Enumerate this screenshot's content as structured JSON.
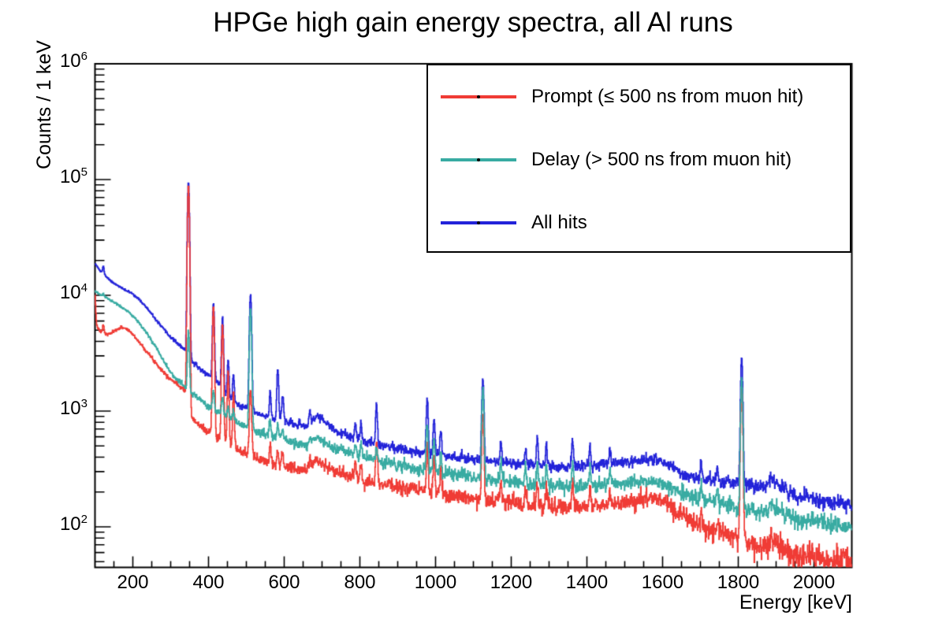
{
  "title": "HPGe high gain energy spectra, all Al runs",
  "axes": {
    "x": {
      "label": "Energy [keV]",
      "min": 100,
      "max": 2100,
      "major_ticks": [
        200,
        400,
        600,
        800,
        1000,
        1200,
        1400,
        1600,
        1800,
        2000
      ],
      "minor_tick_step": 50
    },
    "y": {
      "label": "Counts / 1 keV",
      "scale": "log",
      "min": 44,
      "max": 1000000,
      "decade_exponents": [
        2,
        3,
        4,
        5,
        6
      ]
    }
  },
  "legend": {
    "position": "top-right",
    "entries": [
      {
        "series": "prompt",
        "label": "Prompt (≤ 500 ns from muon hit)",
        "color": "#f03b35"
      },
      {
        "series": "delay",
        "label": "Delay (> 500 ns from muon hit)",
        "color": "#38aba2"
      },
      {
        "series": "all",
        "label": "All hits",
        "color": "#2323d9"
      }
    ]
  },
  "chart_data": {
    "type": "line",
    "title": "HPGe high gain energy spectra, all Al runs",
    "xlabel": "Energy [keV]",
    "ylabel": "Counts / 1 keV",
    "xlim": [
      100,
      2100
    ],
    "ylim": [
      44,
      1000000
    ],
    "yscale": "log",
    "grid": false,
    "bin_width_kev": 1,
    "legend_position": "top-right",
    "draw_order": [
      "all",
      "prompt",
      "delay"
    ],
    "series": [
      {
        "role": "all",
        "name": "All hits",
        "color": "#2323d9",
        "baseline_anchors": [
          [
            100,
            19000
          ],
          [
            115,
            16000
          ],
          [
            130,
            14500
          ],
          [
            145,
            13000
          ],
          [
            160,
            12200
          ],
          [
            175,
            11300
          ],
          [
            200,
            10300
          ],
          [
            215,
            9300
          ],
          [
            230,
            8300
          ],
          [
            245,
            7200
          ],
          [
            260,
            6200
          ],
          [
            275,
            5400
          ],
          [
            290,
            4700
          ],
          [
            305,
            4200
          ],
          [
            320,
            3800
          ],
          [
            335,
            3400
          ],
          [
            350,
            3000
          ],
          [
            360,
            2600
          ],
          [
            375,
            2350
          ],
          [
            390,
            2150
          ],
          [
            405,
            2000
          ],
          [
            420,
            1850
          ],
          [
            435,
            1600
          ],
          [
            450,
            1350
          ],
          [
            465,
            1200
          ],
          [
            480,
            1120
          ],
          [
            495,
            1060
          ],
          [
            515,
            1000
          ],
          [
            535,
            930
          ],
          [
            555,
            880
          ],
          [
            575,
            840
          ],
          [
            600,
            810
          ],
          [
            625,
            770
          ],
          [
            650,
            740
          ],
          [
            668,
            760
          ],
          [
            686,
            910
          ],
          [
            698,
            880
          ],
          [
            712,
            780
          ],
          [
            730,
            690
          ],
          [
            755,
            630
          ],
          [
            780,
            590
          ],
          [
            810,
            550
          ],
          [
            840,
            525
          ],
          [
            870,
            500
          ],
          [
            900,
            475
          ],
          [
            940,
            450
          ],
          [
            980,
            435
          ],
          [
            1020,
            415
          ],
          [
            1060,
            400
          ],
          [
            1100,
            385
          ],
          [
            1150,
            370
          ],
          [
            1200,
            355
          ],
          [
            1250,
            345
          ],
          [
            1300,
            335
          ],
          [
            1350,
            328
          ],
          [
            1400,
            332
          ],
          [
            1450,
            348
          ],
          [
            1500,
            365
          ],
          [
            1540,
            378
          ],
          [
            1572,
            388
          ],
          [
            1600,
            372
          ],
          [
            1622,
            335
          ],
          [
            1648,
            295
          ],
          [
            1675,
            268
          ],
          [
            1705,
            255
          ],
          [
            1745,
            248
          ],
          [
            1785,
            244
          ],
          [
            1815,
            237
          ],
          [
            1845,
            222
          ],
          [
            1872,
            218
          ],
          [
            1888,
            268
          ],
          [
            1902,
            235
          ],
          [
            1925,
            205
          ],
          [
            1955,
            185
          ],
          [
            2000,
            175
          ],
          [
            2050,
            163
          ],
          [
            2100,
            152
          ]
        ]
      },
      {
        "role": "prompt",
        "name": "Prompt (≤ 500 ns from muon hit)",
        "color": "#f03b35",
        "baseline_anchors": [
          [
            100,
            10500
          ],
          [
            104,
            5600
          ],
          [
            112,
            4900
          ],
          [
            122,
            4650
          ],
          [
            132,
            4600
          ],
          [
            142,
            4700
          ],
          [
            155,
            4950
          ],
          [
            168,
            5300
          ],
          [
            180,
            5200
          ],
          [
            192,
            4900
          ],
          [
            205,
            4400
          ],
          [
            218,
            3900
          ],
          [
            231,
            3450
          ],
          [
            244,
            3050
          ],
          [
            257,
            2700
          ],
          [
            270,
            2400
          ],
          [
            283,
            2150
          ],
          [
            296,
            1950
          ],
          [
            310,
            1780
          ],
          [
            324,
            1640
          ],
          [
            338,
            1530
          ],
          [
            348,
            1450
          ],
          [
            354,
            880
          ],
          [
            368,
            790
          ],
          [
            382,
            730
          ],
          [
            398,
            670
          ],
          [
            414,
            620
          ],
          [
            430,
            570
          ],
          [
            446,
            530
          ],
          [
            462,
            495
          ],
          [
            482,
            455
          ],
          [
            502,
            425
          ],
          [
            522,
            400
          ],
          [
            545,
            375
          ],
          [
            568,
            352
          ],
          [
            592,
            335
          ],
          [
            616,
            320
          ],
          [
            640,
            308
          ],
          [
            662,
            315
          ],
          [
            684,
            375
          ],
          [
            697,
            362
          ],
          [
            711,
            330
          ],
          [
            730,
            305
          ],
          [
            755,
            285
          ],
          [
            780,
            270
          ],
          [
            810,
            255
          ],
          [
            840,
            243
          ],
          [
            870,
            232
          ],
          [
            900,
            222
          ],
          [
            935,
            211
          ],
          [
            970,
            202
          ],
          [
            1000,
            195
          ],
          [
            1040,
            187
          ],
          [
            1080,
            180
          ],
          [
            1120,
            173
          ],
          [
            1160,
            167
          ],
          [
            1200,
            161
          ],
          [
            1250,
            155
          ],
          [
            1300,
            151
          ],
          [
            1350,
            148
          ],
          [
            1400,
            150
          ],
          [
            1450,
            156
          ],
          [
            1500,
            164
          ],
          [
            1540,
            171
          ],
          [
            1572,
            176
          ],
          [
            1600,
            167
          ],
          [
            1622,
            148
          ],
          [
            1648,
            128
          ],
          [
            1675,
            113
          ],
          [
            1705,
            101
          ],
          [
            1740,
            92
          ],
          [
            1775,
            85
          ],
          [
            1810,
            79
          ],
          [
            1845,
            70
          ],
          [
            1872,
            68
          ],
          [
            1888,
            82
          ],
          [
            1902,
            71
          ],
          [
            1925,
            63
          ],
          [
            1955,
            58
          ],
          [
            2000,
            55
          ],
          [
            2050,
            52
          ],
          [
            2100,
            49
          ]
        ]
      },
      {
        "role": "delay",
        "name": "Delay (> 500 ns from muon hit)",
        "color": "#38aba2",
        "baseline_anchors": [
          [
            100,
            10800
          ],
          [
            115,
            10100
          ],
          [
            130,
            9500
          ],
          [
            145,
            8900
          ],
          [
            160,
            8300
          ],
          [
            175,
            7700
          ],
          [
            190,
            7100
          ],
          [
            205,
            6400
          ],
          [
            220,
            5600
          ],
          [
            235,
            4800
          ],
          [
            250,
            4050
          ],
          [
            265,
            3400
          ],
          [
            280,
            2800
          ],
          [
            295,
            2300
          ],
          [
            310,
            1950
          ],
          [
            325,
            1750
          ],
          [
            340,
            1580
          ],
          [
            355,
            1430
          ],
          [
            370,
            1300
          ],
          [
            385,
            1190
          ],
          [
            400,
            1100
          ],
          [
            420,
            1000
          ],
          [
            440,
            915
          ],
          [
            460,
            845
          ],
          [
            480,
            785
          ],
          [
            500,
            730
          ],
          [
            520,
            685
          ],
          [
            545,
            640
          ],
          [
            570,
            600
          ],
          [
            595,
            565
          ],
          [
            620,
            535
          ],
          [
            645,
            510
          ],
          [
            663,
            515
          ],
          [
            684,
            580
          ],
          [
            697,
            565
          ],
          [
            711,
            520
          ],
          [
            730,
            480
          ],
          [
            755,
            450
          ],
          [
            780,
            425
          ],
          [
            810,
            400
          ],
          [
            840,
            378
          ],
          [
            875,
            355
          ],
          [
            910,
            335
          ],
          [
            945,
            318
          ],
          [
            980,
            305
          ],
          [
            1015,
            293
          ],
          [
            1050,
            283
          ],
          [
            1090,
            272
          ],
          [
            1130,
            262
          ],
          [
            1170,
            252
          ],
          [
            1210,
            243
          ],
          [
            1255,
            235
          ],
          [
            1300,
            228
          ],
          [
            1350,
            223
          ],
          [
            1400,
            224
          ],
          [
            1450,
            230
          ],
          [
            1500,
            238
          ],
          [
            1540,
            244
          ],
          [
            1572,
            248
          ],
          [
            1600,
            238
          ],
          [
            1622,
            215
          ],
          [
            1648,
            194
          ],
          [
            1675,
            178
          ],
          [
            1705,
            168
          ],
          [
            1740,
            160
          ],
          [
            1775,
            154
          ],
          [
            1810,
            148
          ],
          [
            1845,
            138
          ],
          [
            1872,
            135
          ],
          [
            1888,
            158
          ],
          [
            1902,
            140
          ],
          [
            1925,
            128
          ],
          [
            1955,
            118
          ],
          [
            2000,
            110
          ],
          [
            2050,
            103
          ],
          [
            2100,
            96
          ]
        ]
      }
    ],
    "peaks": [
      {
        "e": 122,
        "sigma": 2.0,
        "all": 2500,
        "prompt": 900,
        "delay": 500
      },
      {
        "e": 347,
        "sigma": 2.2,
        "all": 92000,
        "prompt": 88000,
        "delay": 3500
      },
      {
        "e": 413,
        "sigma": 2.2,
        "all": 6600,
        "prompt": 7400,
        "delay": 450
      },
      {
        "e": 437,
        "sigma": 2.2,
        "all": 4900,
        "prompt": 5000,
        "delay": 380
      },
      {
        "e": 452,
        "sigma": 2.0,
        "all": 1500,
        "prompt": 1600,
        "delay": 220
      },
      {
        "e": 466,
        "sigma": 2.0,
        "all": 900,
        "prompt": 950,
        "delay": 160
      },
      {
        "e": 511,
        "sigma": 2.5,
        "all": 9200,
        "prompt": 1150,
        "delay": 7000
      },
      {
        "e": 563,
        "sigma": 2.0,
        "all": 650,
        "prompt": 180,
        "delay": 230
      },
      {
        "e": 583,
        "sigma": 2.2,
        "all": 1500,
        "prompt": 120,
        "delay": 200
      },
      {
        "e": 596,
        "sigma": 2.5,
        "all": 550,
        "prompt": 100,
        "delay": 130
      },
      {
        "e": 668,
        "sigma": 2.0,
        "all": 270,
        "prompt": 80,
        "delay": 80
      },
      {
        "e": 788,
        "sigma": 2.0,
        "all": 200,
        "prompt": 85,
        "delay": 115
      },
      {
        "e": 803,
        "sigma": 2.0,
        "all": 220,
        "prompt": 95,
        "delay": 125
      },
      {
        "e": 844,
        "sigma": 2.2,
        "all": 640,
        "prompt": 290,
        "delay": 95
      },
      {
        "e": 978,
        "sigma": 2.2,
        "all": 880,
        "prompt": 290,
        "delay": 490
      },
      {
        "e": 996,
        "sigma": 2.2,
        "all": 440,
        "prompt": 200,
        "delay": 275
      },
      {
        "e": 1014,
        "sigma": 2.0,
        "all": 280,
        "prompt": 115,
        "delay": 155
      },
      {
        "e": 1125,
        "sigma": 2.4,
        "all": 1500,
        "prompt": 800,
        "delay": 1340
      },
      {
        "e": 1173,
        "sigma": 2.0,
        "all": 195,
        "prompt": 80,
        "delay": 115
      },
      {
        "e": 1238,
        "sigma": 2.0,
        "all": 140,
        "prompt": 55,
        "delay": 75
      },
      {
        "e": 1269,
        "sigma": 2.0,
        "all": 260,
        "prompt": 80,
        "delay": 130
      },
      {
        "e": 1293,
        "sigma": 2.0,
        "all": 185,
        "prompt": 70,
        "delay": 95
      },
      {
        "e": 1362,
        "sigma": 2.2,
        "all": 235,
        "prompt": 105,
        "delay": 125
      },
      {
        "e": 1408,
        "sigma": 2.0,
        "all": 155,
        "prompt": 65,
        "delay": 85
      },
      {
        "e": 1461,
        "sigma": 2.0,
        "all": 125,
        "prompt": 48,
        "delay": 75
      },
      {
        "e": 1702,
        "sigma": 2.0,
        "all": 105,
        "prompt": 35,
        "delay": 55
      },
      {
        "e": 1745,
        "sigma": 2.0,
        "all": 85,
        "prompt": 28,
        "delay": 45
      },
      {
        "e": 1809,
        "sigma": 2.4,
        "all": 2700,
        "prompt": 1600,
        "delay": 1800
      }
    ]
  }
}
